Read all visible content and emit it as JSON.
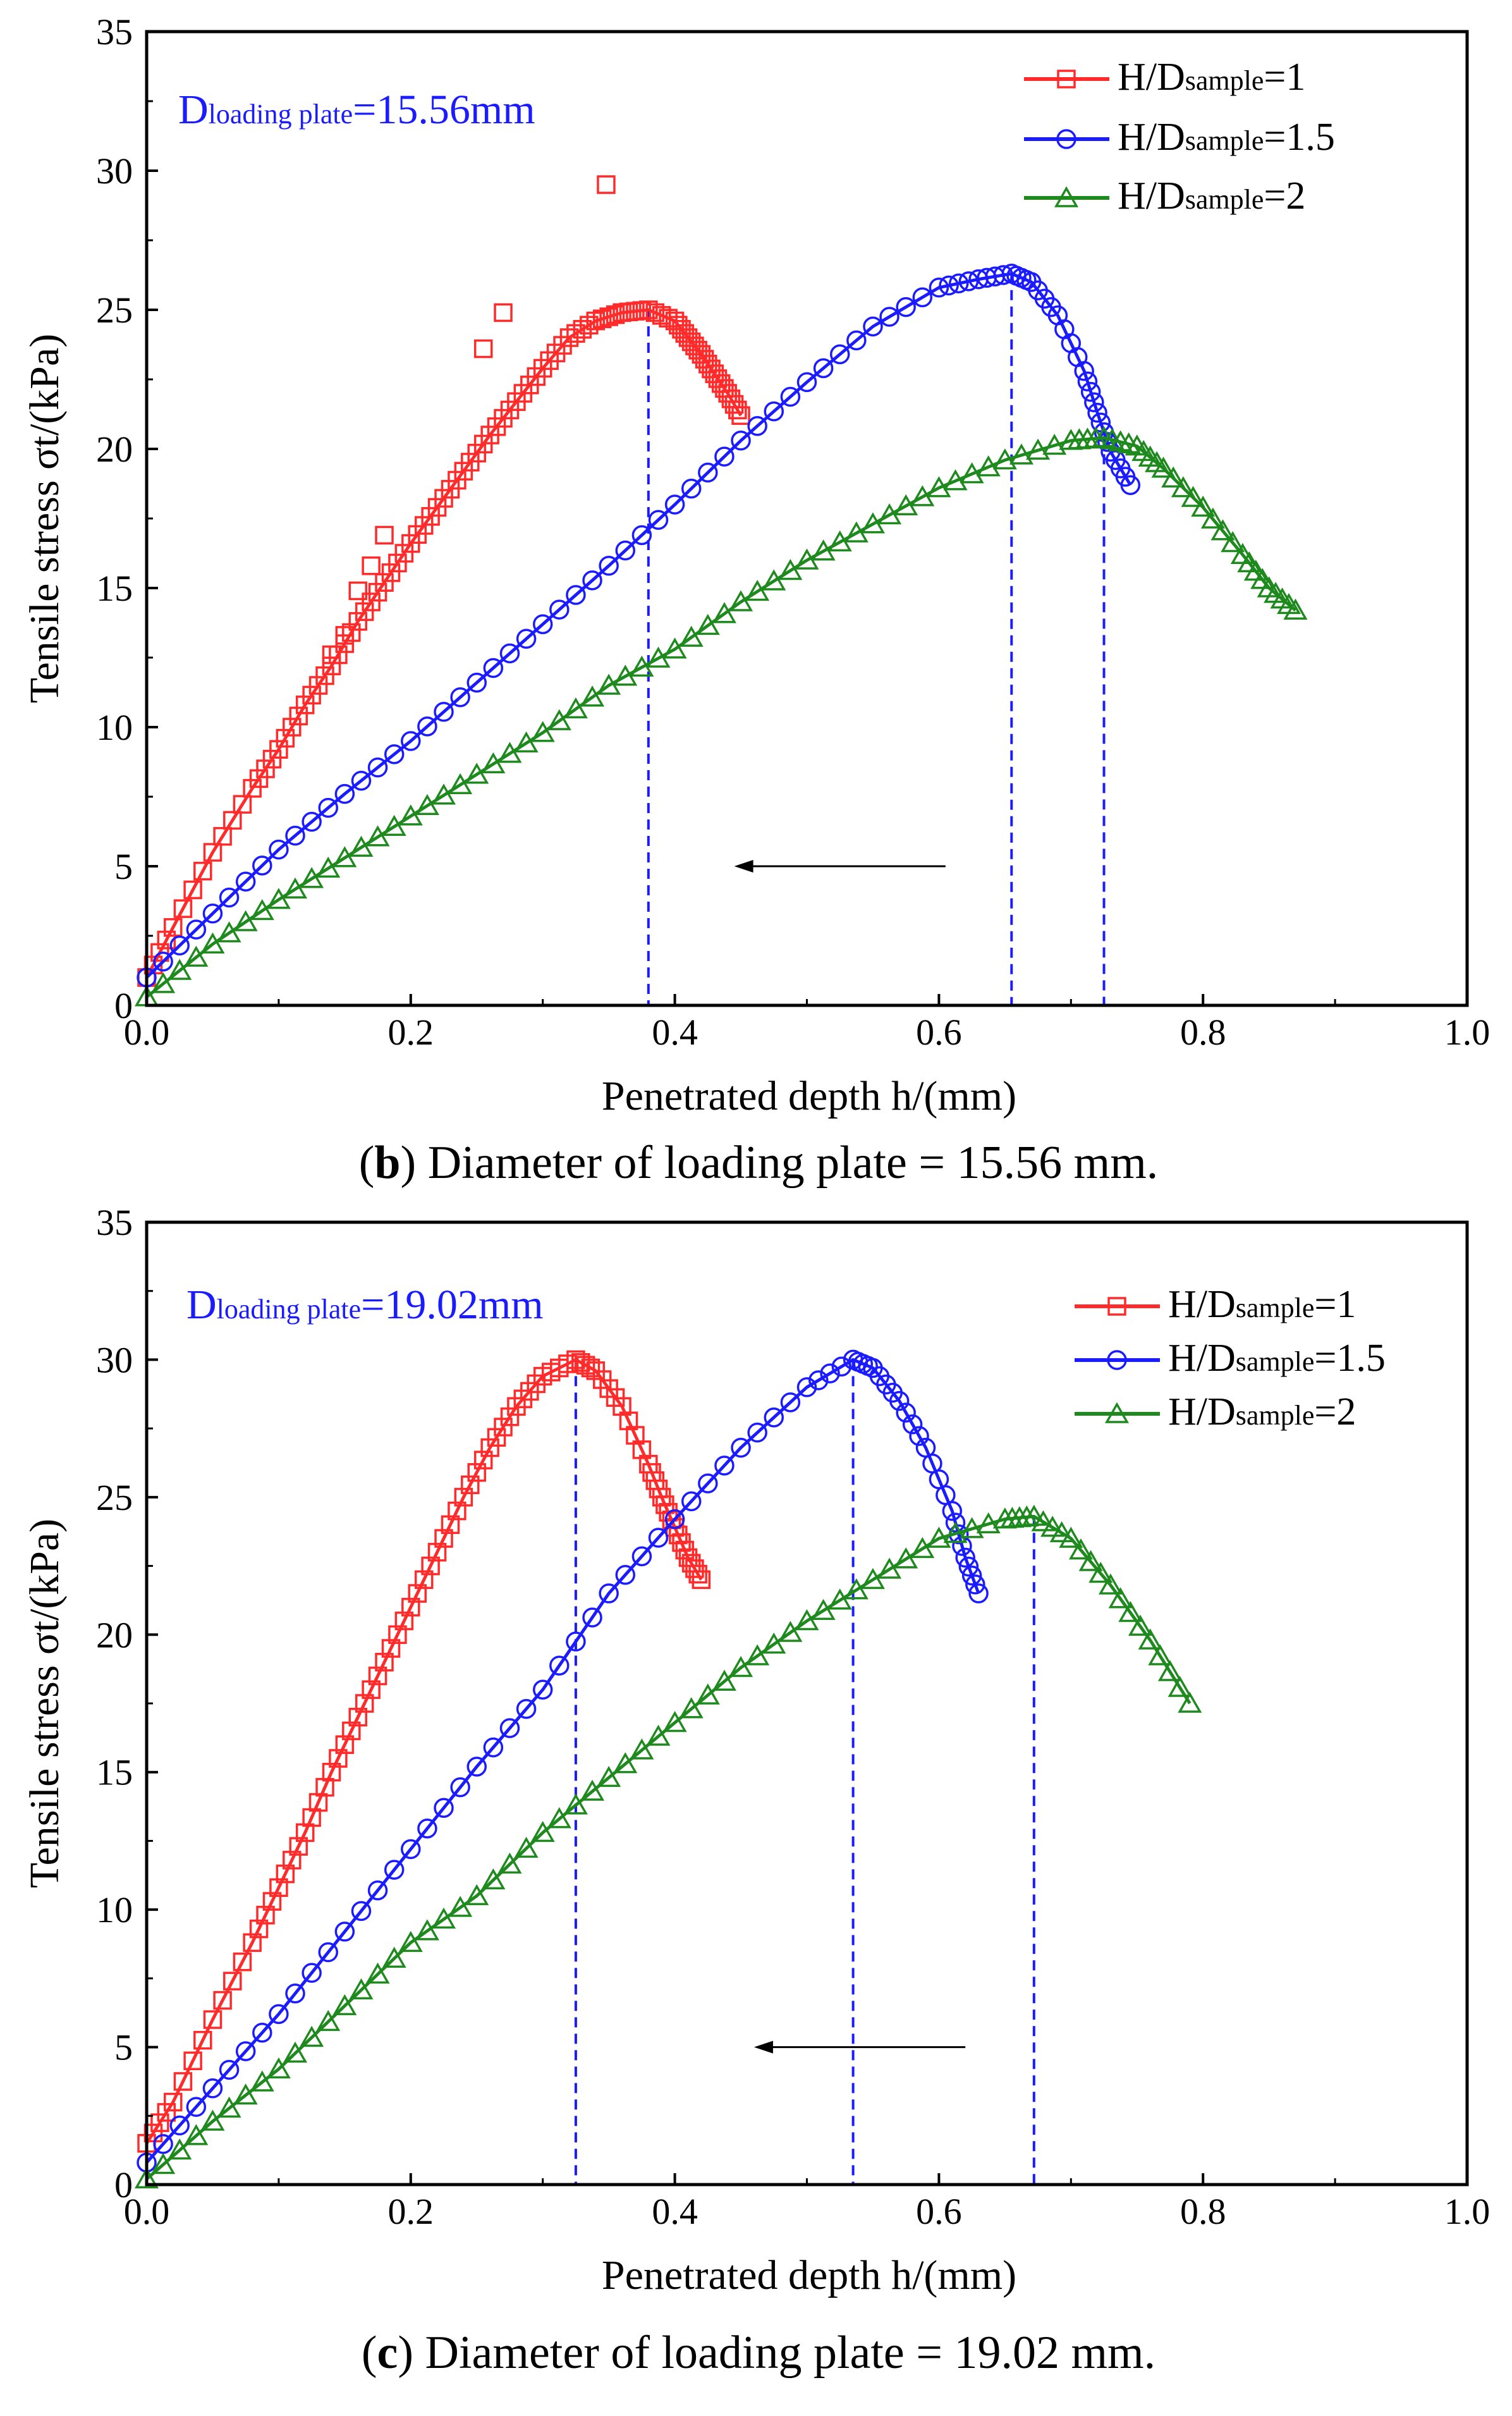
{
  "colors": {
    "series1": "#ff2a2a",
    "series2": "#1b1bff",
    "series3": "#1e8a1e",
    "guide": "#1b1bff",
    "axis": "#000000",
    "annotation": "#1b1bff"
  },
  "chart_data": [
    {
      "type": "scatter",
      "panel_caption_label": "b",
      "panel_caption_text": "Diameter of loading plate = 15.56 mm.",
      "annotation_main": "D",
      "annotation_sub": "loading plate",
      "annotation_value": "=15.56mm",
      "xlabel": "Penetrated depth h/(mm)",
      "ylabel": "Tensile stress σt/(kPa)",
      "xlim": [
        0,
        1.0
      ],
      "ylim": [
        0,
        35
      ],
      "x_ticks": [
        "0.0",
        "0.2",
        "0.4",
        "0.6",
        "0.8",
        "1.0"
      ],
      "y_ticks": [
        "0",
        "5",
        "10",
        "15",
        "20",
        "25",
        "30",
        "35"
      ],
      "legend": [
        {
          "main": "H/D",
          "sub": "sample",
          "tail": "=1",
          "marker": "square"
        },
        {
          "main": "H/D",
          "sub": "sample",
          "tail": "=1.5",
          "marker": "circle"
        },
        {
          "main": "H/D",
          "sub": "sample",
          "tail": "=2",
          "marker": "triangle"
        }
      ],
      "peak_depths": [
        0.38,
        0.655,
        0.725
      ],
      "arrow": {
        "from_x": 0.605,
        "to_x": 0.445,
        "y": 5
      },
      "series": [
        {
          "name": "H/Dsample=1",
          "marker": "square",
          "x": [
            0.0,
            0.02,
            0.05,
            0.08,
            0.1,
            0.12,
            0.14,
            0.16,
            0.18,
            0.2,
            0.22,
            0.24,
            0.26,
            0.28,
            0.3,
            0.32,
            0.34,
            0.36,
            0.38,
            0.4,
            0.41,
            0.42,
            0.43,
            0.44,
            0.45
          ],
          "y": [
            1.0,
            2.8,
            5.5,
            7.8,
            9.2,
            10.8,
            12.2,
            13.8,
            15.2,
            16.6,
            17.9,
            19.2,
            20.5,
            21.7,
            22.9,
            24.0,
            24.6,
            24.9,
            25.0,
            24.6,
            24.0,
            23.4,
            22.7,
            22.0,
            21.2
          ],
          "outliers_x": [
            0.14,
            0.15,
            0.16,
            0.17,
            0.18,
            0.255,
            0.27,
            0.348
          ],
          "outliers_y": [
            12.6,
            13.3,
            14.9,
            15.8,
            16.9,
            23.6,
            24.9,
            29.5
          ]
        },
        {
          "name": "H/Dsample=1.5",
          "marker": "circle",
          "x": [
            0.0,
            0.05,
            0.1,
            0.15,
            0.2,
            0.25,
            0.3,
            0.35,
            0.4,
            0.45,
            0.5,
            0.55,
            0.6,
            0.63,
            0.655,
            0.67,
            0.69,
            0.71,
            0.72,
            0.73,
            0.745
          ],
          "y": [
            1.0,
            3.3,
            5.6,
            7.6,
            9.5,
            11.6,
            13.7,
            15.8,
            18.0,
            20.3,
            22.4,
            24.4,
            25.8,
            26.1,
            26.3,
            26.0,
            24.8,
            22.8,
            21.3,
            19.9,
            18.7
          ]
        },
        {
          "name": "H/Dsample=2",
          "marker": "triangle",
          "x": [
            0.0,
            0.05,
            0.1,
            0.15,
            0.2,
            0.25,
            0.3,
            0.35,
            0.4,
            0.45,
            0.5,
            0.55,
            0.6,
            0.65,
            0.7,
            0.725,
            0.75,
            0.77,
            0.8,
            0.83,
            0.85,
            0.87
          ],
          "y": [
            0.3,
            2.2,
            3.8,
            5.3,
            6.8,
            8.3,
            9.8,
            11.5,
            12.8,
            14.5,
            16.0,
            17.3,
            18.6,
            19.6,
            20.3,
            20.4,
            20.1,
            19.3,
            17.9,
            16.2,
            15.0,
            14.2
          ]
        }
      ]
    },
    {
      "type": "scatter",
      "panel_caption_label": "c",
      "panel_caption_text": "Diameter of loading plate = 19.02 mm.",
      "annotation_main": "D",
      "annotation_sub": "loading plate",
      "annotation_value": "=19.02mm",
      "xlabel": "Penetrated depth h/(mm)",
      "ylabel": "Tensile stress σt/(kPa)",
      "xlim": [
        0,
        1.0
      ],
      "ylim": [
        0,
        35
      ],
      "x_ticks": [
        "0.0",
        "0.2",
        "0.4",
        "0.6",
        "0.8",
        "1.0"
      ],
      "y_ticks": [
        "0",
        "5",
        "10",
        "15",
        "20",
        "25",
        "30",
        "35"
      ],
      "legend": [
        {
          "main": "H/D",
          "sub": "sample",
          "tail": "=1",
          "marker": "square"
        },
        {
          "main": "H/D",
          "sub": "sample",
          "tail": "=1.5",
          "marker": "circle"
        },
        {
          "main": "H/D",
          "sub": "sample",
          "tail": "=2",
          "marker": "triangle"
        }
      ],
      "peak_depths": [
        0.325,
        0.535,
        0.672
      ],
      "arrow": {
        "from_x": 0.62,
        "to_x": 0.46,
        "y": 5
      },
      "series": [
        {
          "name": "H/Dsample=1",
          "marker": "square",
          "x": [
            0.0,
            0.02,
            0.05,
            0.08,
            0.1,
            0.12,
            0.14,
            0.16,
            0.18,
            0.2,
            0.22,
            0.24,
            0.26,
            0.28,
            0.3,
            0.325,
            0.34,
            0.36,
            0.38,
            0.39,
            0.4,
            0.41,
            0.42
          ],
          "y": [
            1.5,
            3.0,
            6.0,
            8.8,
            10.8,
            12.8,
            15.0,
            17.0,
            19.0,
            21.0,
            23.0,
            25.0,
            26.8,
            28.3,
            29.4,
            30.0,
            29.6,
            28.3,
            26.2,
            25.0,
            23.9,
            22.8,
            22.0
          ]
        },
        {
          "name": "H/Dsample=1.5",
          "marker": "circle",
          "x": [
            0.0,
            0.05,
            0.1,
            0.15,
            0.2,
            0.25,
            0.3,
            0.35,
            0.4,
            0.45,
            0.5,
            0.535,
            0.55,
            0.57,
            0.59,
            0.61,
            0.62,
            0.63
          ],
          "y": [
            0.8,
            3.5,
            6.2,
            9.2,
            12.2,
            15.2,
            18.0,
            21.5,
            24.2,
            26.8,
            29.0,
            30.0,
            29.7,
            28.5,
            26.8,
            24.5,
            22.8,
            21.5
          ]
        },
        {
          "name": "H/Dsample=2",
          "marker": "triangle",
          "x": [
            0.0,
            0.05,
            0.1,
            0.15,
            0.2,
            0.25,
            0.3,
            0.35,
            0.4,
            0.45,
            0.5,
            0.55,
            0.6,
            0.65,
            0.672,
            0.7,
            0.73,
            0.76,
            0.79
          ],
          "y": [
            0.2,
            2.3,
            4.2,
            6.5,
            8.8,
            10.5,
            12.8,
            14.8,
            16.8,
            18.8,
            20.5,
            22.0,
            23.5,
            24.2,
            24.3,
            23.5,
            21.8,
            19.8,
            17.5
          ]
        }
      ]
    }
  ]
}
